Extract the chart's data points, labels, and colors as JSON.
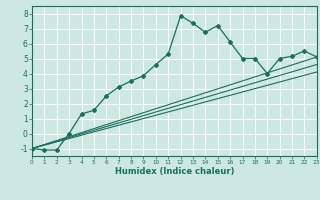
{
  "xlabel": "Humidex (Indice chaleur)",
  "xlim": [
    0,
    23
  ],
  "ylim": [
    -1.5,
    8.5
  ],
  "xticks": [
    0,
    1,
    2,
    3,
    4,
    5,
    6,
    7,
    8,
    9,
    10,
    11,
    12,
    13,
    14,
    15,
    16,
    17,
    18,
    19,
    20,
    21,
    22,
    23
  ],
  "yticks": [
    -1,
    0,
    1,
    2,
    3,
    4,
    5,
    6,
    7,
    8
  ],
  "bg_color": "#cce8e0",
  "line_color": "#1a6e5e",
  "grid_color": "#ffffff",
  "curve_x": [
    0,
    1,
    2,
    3,
    4,
    5,
    6,
    7,
    8,
    9,
    10,
    11,
    12,
    13,
    14,
    15,
    16,
    17,
    18,
    19,
    20,
    21,
    22,
    23
  ],
  "curve_y": [
    -1.0,
    -1.1,
    -1.1,
    0.0,
    1.3,
    1.55,
    2.5,
    3.1,
    3.5,
    3.85,
    4.6,
    5.3,
    7.85,
    7.35,
    6.75,
    7.2,
    6.1,
    5.0,
    5.0,
    4.0,
    5.0,
    5.15,
    5.5,
    5.1
  ],
  "line1_x": [
    0,
    23
  ],
  "line1_y": [
    -1.0,
    5.1
  ],
  "line2_x": [
    0,
    23
  ],
  "line2_y": [
    -1.0,
    4.6
  ],
  "line3_x": [
    0,
    23
  ],
  "line3_y": [
    -1.0,
    4.1
  ]
}
